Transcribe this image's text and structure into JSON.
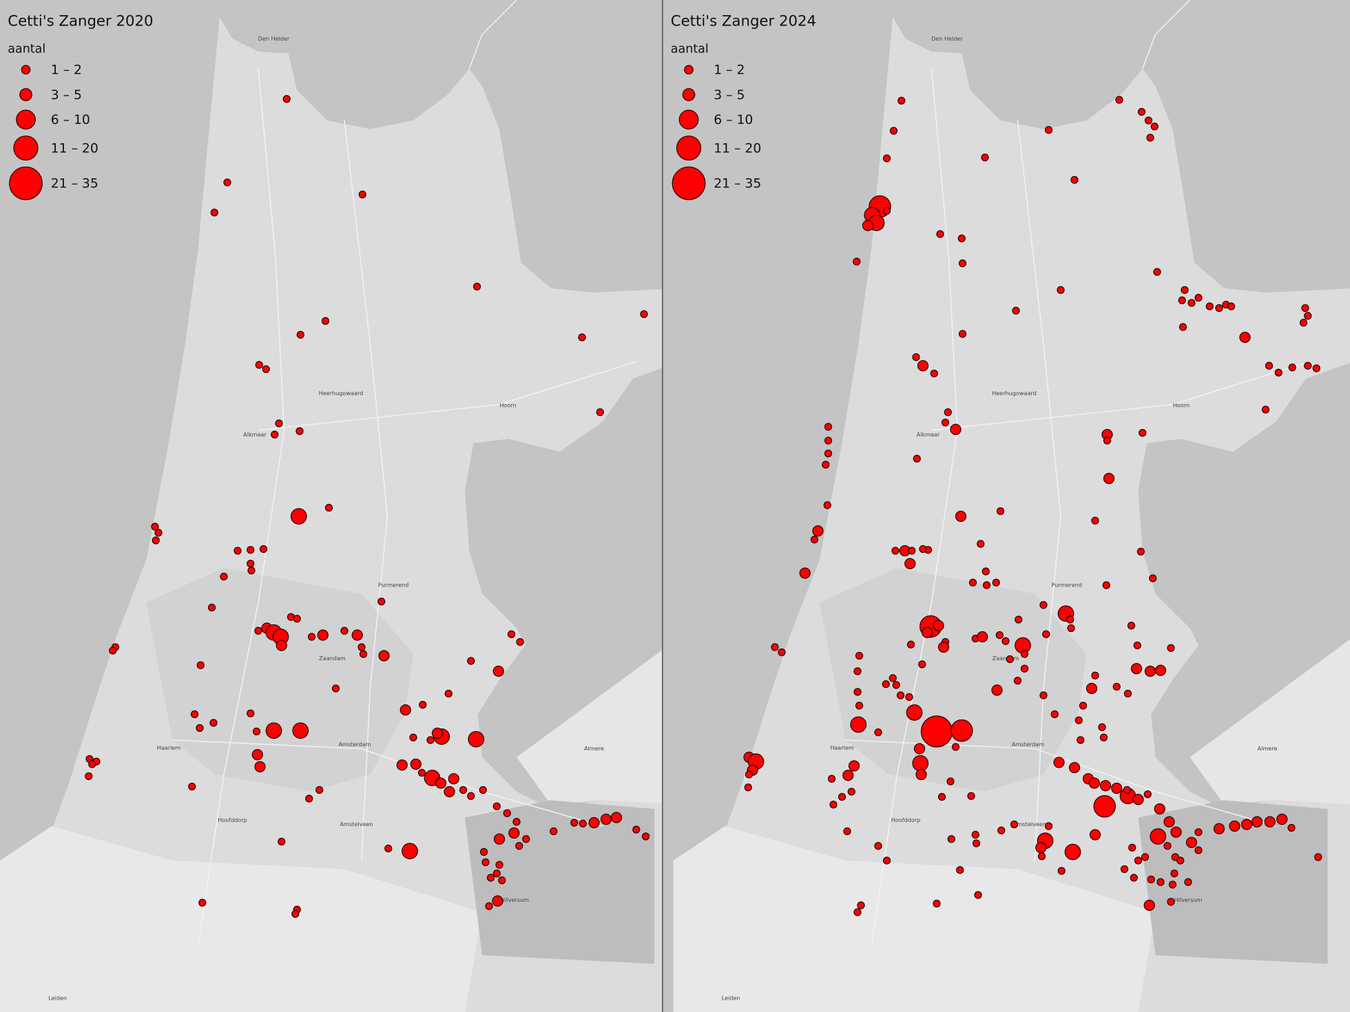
{
  "panels": [
    {
      "title": "Cetti's Zanger 2020",
      "legend_title": "aantal",
      "legend": [
        "1 – 2",
        "3 – 5",
        "6 – 10",
        "11 – 20",
        "21 – 35"
      ]
    },
    {
      "title": "Cetti's Zanger 2024",
      "legend_title": "aantal",
      "legend": [
        "1 – 2",
        "3 – 5",
        "6 – 10",
        "11 – 20",
        "21 – 35"
      ]
    }
  ],
  "places": [
    "Den Helder",
    "Alkmaar",
    "Heerhugowaard",
    "Hoorn",
    "Purmerend",
    "Zaandam",
    "Haarlem",
    "Amsterdam",
    "Hoofddorp",
    "Amstelveen",
    "Hilversum",
    "Almere",
    "Leiden"
  ]
}
